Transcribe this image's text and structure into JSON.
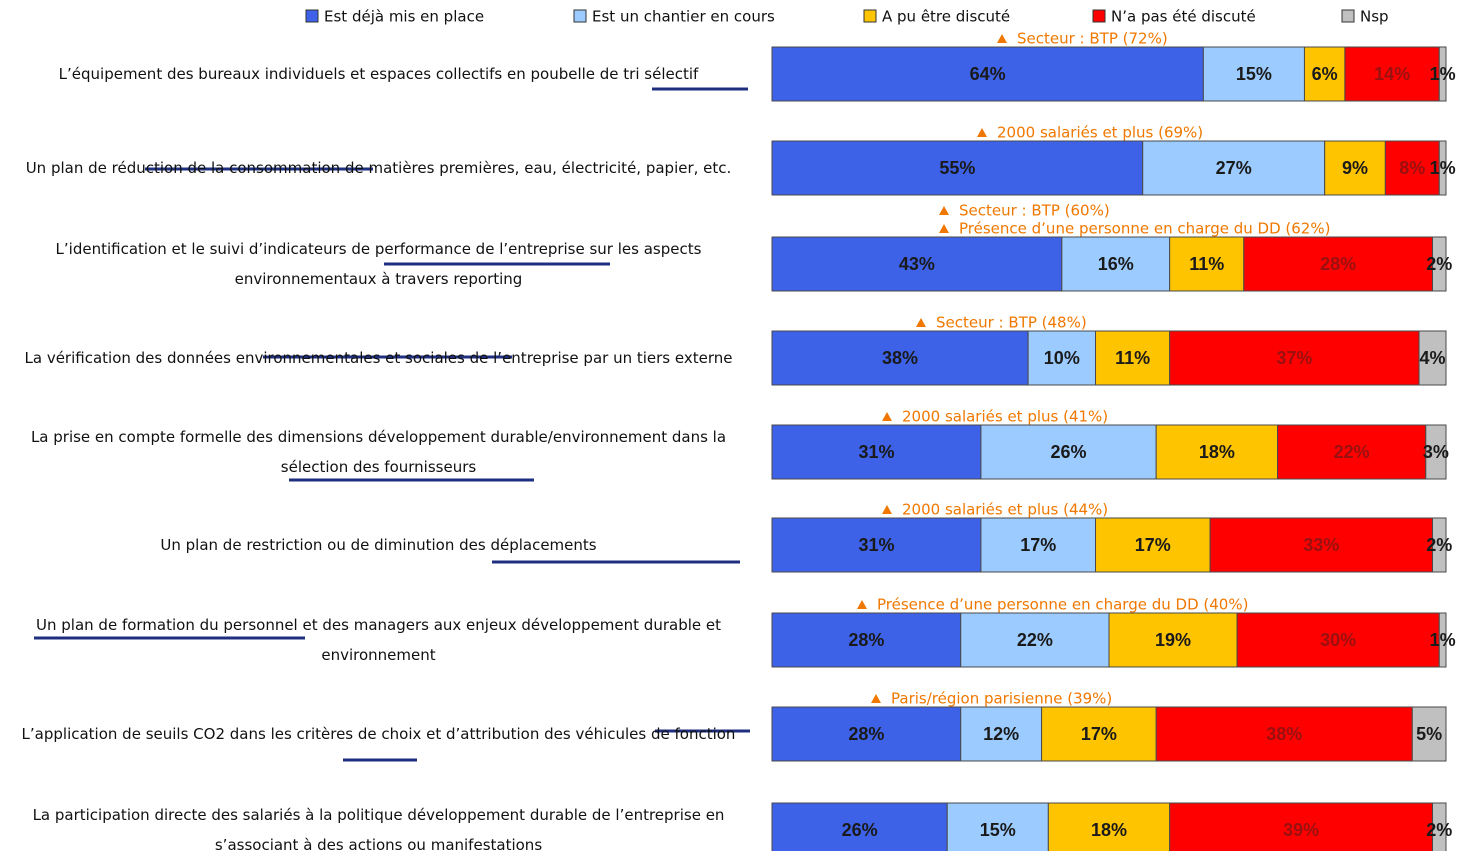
{
  "chart_data": {
    "type": "stacked-bar-horizontal",
    "categories": [
      "L’équipement des bureaux individuels et espaces collectifs en poubelle de tri sélectif",
      "Un plan de réduction de la consommation de matières premières, eau, électricité, papier, etc.",
      "L’identification et le suivi d’indicateurs de performance de l’entreprise sur les aspects environnementaux à travers reporting",
      "La vérification des données environnementales et sociales de l’entreprise par un tiers externe",
      "La prise en compte formelle des dimensions développement durable/environnement dans la sélection des fournisseurs",
      "Un plan de restriction ou de diminution des déplacements",
      "Un plan de formation du personnel et des managers aux enjeux développement durable et environnement",
      "L’application de seuils CO2 dans les critères de choix et d’attribution des véhicules de fonction",
      "La participation directe des salariés à la politique développement durable de l’entreprise en s’associant à des actions ou manifestations"
    ],
    "series": [
      {
        "name": "Est déjà mis en place",
        "color": "#3d62e8",
        "values": [
          64,
          55,
          43,
          38,
          31,
          31,
          28,
          28,
          26
        ],
        "value_labels": [
          "64%",
          "55%",
          "43%",
          "38%",
          "31%",
          "31%",
          "28%",
          "28%",
          "26%"
        ]
      },
      {
        "name": "Est un chantier en cours",
        "color": "#9ccbff",
        "values": [
          15,
          27,
          16,
          10,
          26,
          17,
          22,
          12,
          15
        ],
        "value_labels": [
          "15%",
          "27%",
          "16%",
          "10%",
          "26%",
          "17%",
          "22%",
          "12%",
          "15%"
        ]
      },
      {
        "name": "A pu être discuté",
        "color": "#ffc400",
        "values": [
          6,
          9,
          11,
          11,
          18,
          17,
          19,
          17,
          18
        ],
        "value_labels": [
          "6%",
          "9%",
          "11%",
          "11%",
          "18%",
          "17%",
          "19%",
          "17%",
          "18%"
        ]
      },
      {
        "name": "N’a pas été discuté",
        "color": "#ff0000",
        "values": [
          14,
          8,
          28,
          37,
          22,
          33,
          30,
          38,
          39
        ],
        "value_labels": [
          "14%",
          "8%",
          "28%",
          "37%",
          "22%",
          "33%",
          "30%",
          "38%",
          "39%"
        ]
      },
      {
        "name": "Nsp",
        "color": "#c0c0c0",
        "values": [
          1,
          1,
          2,
          4,
          3,
          2,
          1,
          5,
          2
        ],
        "value_labels": [
          "1%",
          "1%",
          "2%",
          "4%",
          "3%",
          "2%",
          "1%",
          "5%",
          "2%"
        ]
      }
    ],
    "annotations": [
      [
        "Secteur : BTP (72%)"
      ],
      [
        "2000 salariés et plus (69%)"
      ],
      [
        "Secteur : BTP (60%)",
        "Présence d’une personne en charge du DD (62%)"
      ],
      [
        "Secteur : BTP (48%)"
      ],
      [
        "2000 salariés et plus (41%)"
      ],
      [
        "2000 salariés et plus (44%)"
      ],
      [
        "Présence d’une personne en charge du DD (40%)"
      ],
      [
        "Paris/région parisienne (39%)"
      ],
      []
    ],
    "xlim": [
      0,
      100
    ]
  }
}
